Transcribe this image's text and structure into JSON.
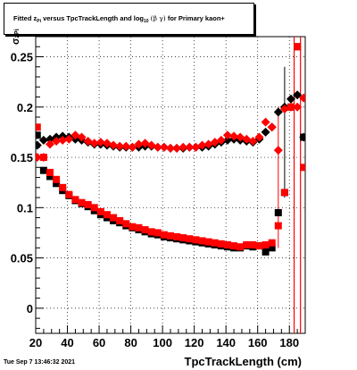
{
  "title": {
    "part1": "Fitted  z",
    "sub1": "Pi",
    "part2": "  versus TpcTrackLength and log",
    "sub2": "10",
    "part3": "(β  γ)",
    "part4": " for Primary kaon+"
  },
  "ylabel": {
    "main": "σ",
    "sub": "zPi"
  },
  "xlabel": "TpcTrackLength (cm)",
  "datestamp": "Tue Sep  7 13:46:32 2021",
  "colors": {
    "black": "#000000",
    "red": "#ff0000"
  },
  "chart_data": {
    "type": "scatter",
    "xlim": [
      20,
      190
    ],
    "ylim": [
      -0.025,
      0.27
    ],
    "xticks": [
      "20",
      "40",
      "60",
      "80",
      "100",
      "120",
      "140",
      "160",
      "180"
    ],
    "xtick_values": [
      20,
      40,
      60,
      80,
      100,
      120,
      140,
      160,
      180
    ],
    "yticks": [
      "0",
      "0.05",
      "0.1",
      "0.15",
      "0.2",
      "0.25"
    ],
    "ytick_values": [
      0,
      0.05,
      0.1,
      0.15,
      0.2,
      0.25
    ],
    "grid": true,
    "series": [
      {
        "marker": "diamond",
        "color": "black",
        "x": [
          21,
          25,
          29,
          33,
          37,
          41,
          45,
          49,
          53,
          57,
          61,
          65,
          69,
          73,
          77,
          81,
          85,
          89,
          93,
          97,
          101,
          105,
          109,
          113,
          117,
          121,
          125,
          129,
          133,
          137,
          141,
          145,
          149,
          153,
          157,
          161,
          165,
          169,
          173,
          177,
          181,
          185,
          189
        ],
        "y": [
          0.162,
          0.167,
          0.168,
          0.17,
          0.171,
          0.17,
          0.168,
          0.167,
          0.165,
          0.163,
          0.163,
          0.162,
          0.161,
          0.16,
          0.16,
          0.16,
          0.16,
          0.161,
          0.161,
          0.16,
          0.16,
          0.159,
          0.159,
          0.159,
          0.16,
          0.16,
          0.16,
          0.161,
          0.163,
          0.165,
          0.167,
          0.168,
          0.167,
          0.166,
          0.165,
          0.168,
          0.175,
          0.18,
          0.195,
          0.2,
          0.208,
          0.212,
          0.17
        ]
      },
      {
        "marker": "diamond",
        "color": "red",
        "x": [
          21,
          25,
          29,
          33,
          37,
          41,
          45,
          49,
          53,
          57,
          61,
          65,
          69,
          73,
          77,
          81,
          85,
          89,
          93,
          97,
          101,
          105,
          109,
          113,
          117,
          121,
          125,
          129,
          133,
          137,
          141,
          145,
          149,
          153,
          157,
          161,
          165,
          169,
          173,
          177,
          181,
          185,
          189
        ],
        "y": [
          0.15,
          0.15,
          0.163,
          0.166,
          0.167,
          0.168,
          0.172,
          0.17,
          0.166,
          0.164,
          0.165,
          0.164,
          0.162,
          0.161,
          0.161,
          0.16,
          0.163,
          0.164,
          0.162,
          0.16,
          0.16,
          0.159,
          0.159,
          0.16,
          0.16,
          0.16,
          0.162,
          0.163,
          0.165,
          0.167,
          0.172,
          0.171,
          0.17,
          0.168,
          0.166,
          0.17,
          0.185,
          0.18,
          0.157,
          0.198,
          0.2,
          0.2,
          0.209
        ]
      },
      {
        "marker": "square",
        "color": "black",
        "x": [
          21,
          25,
          29,
          33,
          37,
          41,
          45,
          49,
          53,
          57,
          61,
          65,
          69,
          73,
          77,
          81,
          85,
          89,
          93,
          97,
          101,
          105,
          109,
          113,
          117,
          121,
          125,
          129,
          133,
          137,
          141,
          145,
          149,
          153,
          157,
          161,
          165,
          169,
          173,
          177,
          181,
          185,
          189
        ],
        "y": [
          0.172,
          0.137,
          0.131,
          0.124,
          0.117,
          0.112,
          0.107,
          0.104,
          0.101,
          0.097,
          0.093,
          0.09,
          0.087,
          0.085,
          0.082,
          0.08,
          0.078,
          0.076,
          0.074,
          0.073,
          0.071,
          0.07,
          0.069,
          0.068,
          0.067,
          0.066,
          0.065,
          0.064,
          0.063,
          0.062,
          0.061,
          0.06,
          0.06,
          0.062,
          0.061,
          0.062,
          0.056,
          0.06,
          0.095,
          0.115,
          0.2,
          0.26,
          0.17
        ]
      },
      {
        "marker": "square",
        "color": "red",
        "x": [
          21,
          25,
          29,
          33,
          37,
          41,
          45,
          49,
          53,
          57,
          61,
          65,
          69,
          73,
          77,
          81,
          85,
          89,
          93,
          97,
          101,
          105,
          109,
          113,
          117,
          121,
          125,
          129,
          133,
          137,
          141,
          145,
          149,
          153,
          157,
          161,
          165,
          169,
          173,
          177,
          181,
          185,
          189
        ],
        "y": [
          0.18,
          0.15,
          0.135,
          0.128,
          0.12,
          0.113,
          0.108,
          0.105,
          0.103,
          0.1,
          0.096,
          0.093,
          0.09,
          0.087,
          0.084,
          0.081,
          0.08,
          0.078,
          0.076,
          0.075,
          0.073,
          0.072,
          0.071,
          0.07,
          0.069,
          0.068,
          0.067,
          0.066,
          0.065,
          0.064,
          0.063,
          0.062,
          0.061,
          0.063,
          0.063,
          0.062,
          0.063,
          0.065,
          0.082,
          0.115,
          0.2,
          0.26,
          0.14
        ]
      }
    ]
  }
}
